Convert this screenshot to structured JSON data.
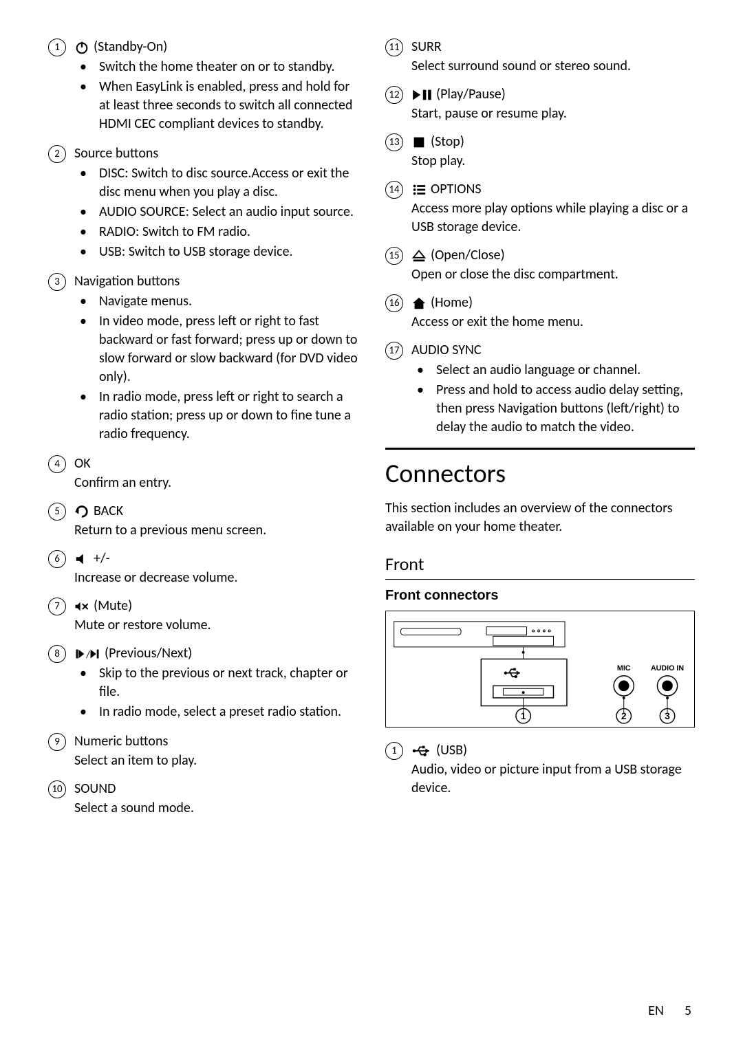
{
  "left": [
    {
      "num": "1",
      "icon": "power",
      "label": " (Standby-On)",
      "bullets": [
        [
          "Switch the home theater on or to standby."
        ],
        [
          "When EasyLink is enabled, press and hold for at least three seconds to switch all connected HDMI CEC compliant devices to standby."
        ]
      ]
    },
    {
      "num": "2",
      "label": "Source buttons",
      "bullets": [
        [
          "",
          "DISC",
          ": Switch to disc source.Access or exit the disc menu when you play a disc."
        ],
        [
          "",
          "AUDIO SOURCE",
          ": Select an audio input source."
        ],
        [
          "",
          "RADIO",
          ": Switch to FM radio."
        ],
        [
          "",
          "USB",
          ": Switch to USB storage device."
        ]
      ]
    },
    {
      "num": "3",
      "label": "Navigation buttons",
      "bullets": [
        [
          "Navigate menus."
        ],
        [
          "In video mode, press left or right to fast backward or fast forward; press up or down to slow forward or slow backward (for DVD video only)."
        ],
        [
          "In radio mode, press left or right to search a radio station; press up or down to fine tune a radio frequency."
        ]
      ]
    },
    {
      "num": "4",
      "label": "OK",
      "desc": "Confirm an entry."
    },
    {
      "num": "5",
      "icon": "back",
      "label": " BACK",
      "desc": "Return to a previous menu screen."
    },
    {
      "num": "6",
      "icon": "vol",
      "label": " +/-",
      "desc": "Increase or decrease volume."
    },
    {
      "num": "7",
      "icon": "mute",
      "label": " (Mute)",
      "desc": "Mute or restore volume."
    },
    {
      "num": "8",
      "icon": "prevnext",
      "label": " (Previous/Next)",
      "bullets": [
        [
          "Skip to the previous or next track, chapter or file."
        ],
        [
          "In radio mode, select a preset radio station."
        ]
      ]
    },
    {
      "num": "9",
      "label": "Numeric buttons",
      "desc": "Select an item to play."
    },
    {
      "num": "10",
      "label": "SOUND",
      "desc": "Select a sound mode."
    }
  ],
  "right": [
    {
      "num": "11",
      "label": "SURR",
      "desc": "Select surround sound or stereo sound."
    },
    {
      "num": "12",
      "icon": "playpause",
      "label": " (Play/Pause)",
      "desc": "Start, pause or resume play."
    },
    {
      "num": "13",
      "icon": "stop",
      "label": " (Stop)",
      "desc": "Stop play."
    },
    {
      "num": "14",
      "icon": "options",
      "label": " OPTIONS",
      "desc": "Access more play options while playing a disc or a USB storage device."
    },
    {
      "num": "15",
      "icon": "eject",
      "label": " (Open/Close)",
      "desc": "Open or close the disc compartment."
    },
    {
      "num": "16",
      "icon": "home",
      "label": " (Home)",
      "desc": "Access or exit the home menu."
    },
    {
      "num": "17",
      "label": "AUDIO SYNC",
      "bullets": [
        [
          "Select an audio language or channel."
        ],
        [
          "Press and hold to access audio delay setting, then press ",
          "Navigation buttons",
          " (left/right) to delay the audio to match the video."
        ]
      ]
    }
  ],
  "connectors": {
    "heading": "Connectors",
    "intro": "This section includes an overview of the connectors available on your home theater.",
    "sub": "Front",
    "sub2": "Front connectors",
    "labels": {
      "mic": "MIC",
      "audioin": "AUDIO IN"
    },
    "item1": {
      "num": "1",
      "label": " (USB)",
      "desc": "Audio, video or picture input from a USB storage device."
    }
  },
  "footer": {
    "lang": "EN",
    "page": "5"
  }
}
